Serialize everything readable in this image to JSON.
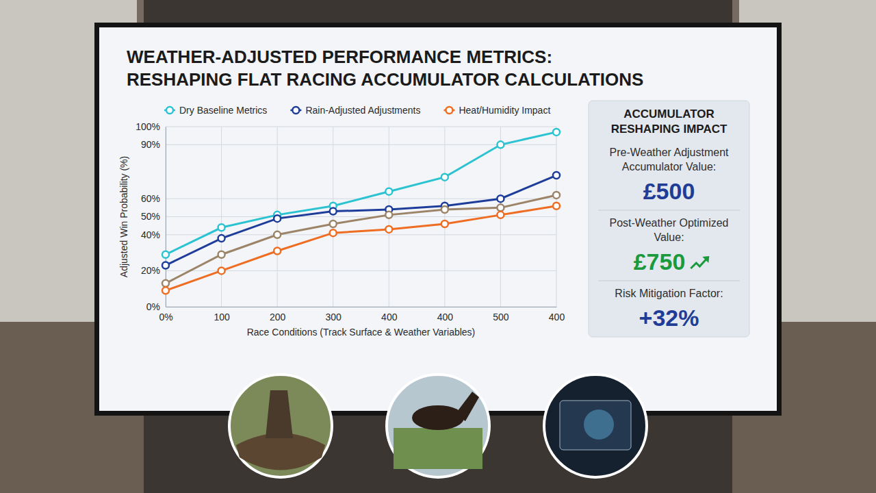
{
  "chart_data": {
    "type": "line",
    "title": "WEATHER-ADJUSTED PERFORMANCE METRICS: RESHAPING FLAT RACING ACCUMULATOR CALCULATIONS",
    "x_label": "Race Conditions (Track Surface & Weather Variables)",
    "y_label": "Adjusted Win Probability (%)",
    "categories": [
      "0%",
      "100",
      "200",
      "300",
      "400",
      "400",
      "500",
      "400"
    ],
    "series": [
      {
        "name": "Dry Baseline Metrics",
        "color": "#2bc3d1",
        "values": [
          29,
          44,
          51,
          56,
          64,
          72,
          90,
          97
        ]
      },
      {
        "name": "Rain-Adjusted Adjustments",
        "color": "#1e3c9a",
        "values": [
          23,
          38,
          49,
          53,
          54,
          56,
          60,
          73
        ]
      },
      {
        "color": "#9c8468",
        "values": [
          13,
          29,
          40,
          46,
          51,
          54,
          55,
          62
        ]
      },
      {
        "name": "Heat/Humidity Impact",
        "color": "#ee6d22",
        "values": [
          9,
          20,
          31,
          41,
          43,
          46,
          51,
          56
        ]
      }
    ],
    "ylim": [
      0,
      100
    ],
    "yticks": [
      {
        "value": 0,
        "label": "0%"
      },
      {
        "value": 20,
        "label": "20%"
      },
      {
        "value": 40,
        "label": "40%"
      },
      {
        "value": 50,
        "label": "50%"
      },
      {
        "value": 60,
        "label": "60%"
      },
      {
        "value": 90,
        "label": "90%"
      },
      {
        "value": 100,
        "label": "100%"
      }
    ],
    "grid": true,
    "legend": "top",
    "marker": "circle",
    "line_style": "solid"
  },
  "panel": {
    "title": "ACCUMULATOR RESHAPING IMPACT",
    "items": [
      {
        "label": "Pre-Weather Adjustment Accumulator Value:",
        "value": "£500",
        "color": "#1f3d96"
      },
      {
        "label": "Post-Weather Optimized Value:",
        "value": "£750",
        "color": "#1a9a3c"
      },
      {
        "label": "Risk Mitigation Factor:",
        "value": "+32%",
        "color": "#1f3d96"
      }
    ]
  }
}
